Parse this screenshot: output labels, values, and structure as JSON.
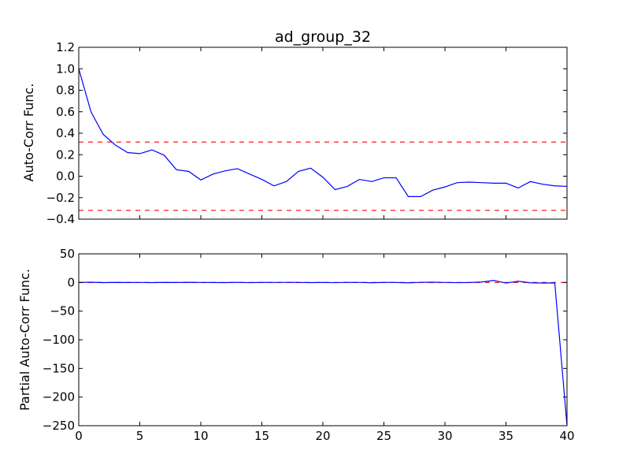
{
  "chart_data": [
    {
      "type": "line",
      "title": "ad_group_32",
      "xlabel": "",
      "ylabel": "Auto-Corr Func.",
      "xlim": [
        0,
        40
      ],
      "ylim": [
        -0.4,
        1.2
      ],
      "xticks": [
        0,
        5,
        10,
        15,
        20,
        25,
        30,
        35,
        40
      ],
      "yticks": [
        -0.4,
        -0.2,
        0.0,
        0.2,
        0.4,
        0.6,
        0.8,
        1.0,
        1.2
      ],
      "ytick_labels": [
        "−0.4",
        "−0.2",
        "0.0",
        "0.2",
        "0.4",
        "0.6",
        "0.8",
        "1.0",
        "1.2"
      ],
      "show_xtick_labels": false,
      "grid": false,
      "series": [
        {
          "color": "#0000ff",
          "style": "solid",
          "x": [
            0,
            1,
            2,
            3,
            4,
            5,
            6,
            7,
            8,
            9,
            10,
            11,
            12,
            13,
            14,
            15,
            16,
            17,
            18,
            19,
            20,
            21,
            22,
            23,
            24,
            25,
            26,
            27,
            28,
            29,
            30,
            31,
            32,
            33,
            34,
            35,
            36,
            37,
            38,
            39,
            40
          ],
          "values": [
            1.0,
            0.6,
            0.39,
            0.29,
            0.22,
            0.21,
            0.245,
            0.195,
            0.06,
            0.045,
            -0.035,
            0.02,
            0.05,
            0.07,
            0.02,
            -0.03,
            -0.09,
            -0.05,
            0.045,
            0.075,
            -0.01,
            -0.125,
            -0.095,
            -0.03,
            -0.05,
            -0.015,
            -0.015,
            -0.19,
            -0.19,
            -0.13,
            -0.1,
            -0.06,
            -0.055,
            -0.06,
            -0.065,
            -0.065,
            -0.11,
            -0.05,
            -0.075,
            -0.09,
            -0.095
          ]
        }
      ],
      "reference_lines": [
        {
          "y": 0.318,
          "color": "#ff0000",
          "style": "dashed"
        },
        {
          "y": -0.318,
          "color": "#ff0000",
          "style": "dashed"
        }
      ]
    },
    {
      "type": "line",
      "title": "",
      "xlabel": "",
      "ylabel": "Partial Auto-Corr Func.",
      "xlim": [
        0,
        40
      ],
      "ylim": [
        -250,
        50
      ],
      "xticks": [
        0,
        5,
        10,
        15,
        20,
        25,
        30,
        35,
        40
      ],
      "xtick_labels": [
        "0",
        "5",
        "10",
        "15",
        "20",
        "25",
        "30",
        "35",
        "40"
      ],
      "yticks": [
        -250,
        -200,
        -150,
        -100,
        -50,
        0,
        50
      ],
      "ytick_labels": [
        "−250",
        "−200",
        "−150",
        "−100",
        "−50",
        "0",
        "50"
      ],
      "show_xtick_labels": true,
      "grid": false,
      "series": [
        {
          "color": "#0000ff",
          "style": "solid",
          "x": [
            0,
            1,
            2,
            3,
            4,
            5,
            6,
            7,
            8,
            9,
            10,
            11,
            12,
            13,
            14,
            15,
            16,
            17,
            18,
            19,
            20,
            21,
            22,
            23,
            24,
            25,
            26,
            27,
            28,
            29,
            30,
            31,
            32,
            33,
            34,
            35,
            36,
            37,
            38,
            39,
            40
          ],
          "values": [
            0,
            0.5,
            -0.2,
            0.1,
            -0.1,
            0.0,
            -0.2,
            0.1,
            -0.1,
            0.3,
            0.0,
            -0.1,
            -0.2,
            0.2,
            -0.3,
            0.1,
            0.0,
            0.2,
            0.1,
            -0.2,
            0.0,
            -0.3,
            0.2,
            0.0,
            -0.4,
            0.1,
            0.0,
            -0.6,
            0.2,
            0.5,
            0.0,
            -0.3,
            -0.1,
            0.8,
            3.5,
            -1.0,
            2.2,
            -0.6,
            -0.9,
            -0.8,
            -250
          ]
        }
      ],
      "reference_lines": [
        {
          "y": 0.0,
          "color": "#ff0000",
          "style": "dashed",
          "x_range": [
            0,
            40
          ]
        }
      ]
    }
  ]
}
